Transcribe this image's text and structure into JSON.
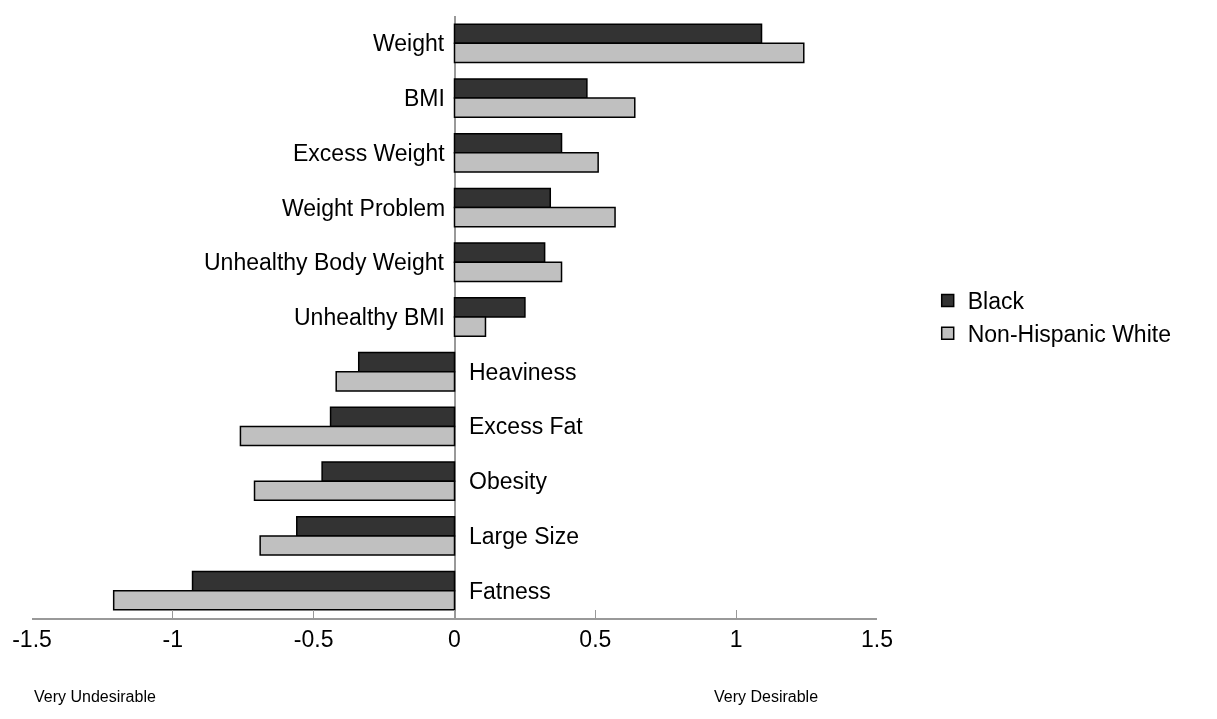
{
  "chart_data": {
    "type": "bar",
    "orientation": "horizontal",
    "categories": [
      "Weight",
      "BMI",
      "Excess Weight",
      "Weight Problem",
      "Unhealthy Body Weight",
      "Unhealthy BMI",
      "Heaviness",
      "Excess Fat",
      "Obesity",
      "Large Size",
      "Fatness"
    ],
    "series": [
      {
        "name": "Black",
        "color": "#333333",
        "values": [
          1.09,
          0.47,
          0.38,
          0.34,
          0.32,
          0.25,
          -0.34,
          -0.44,
          -0.47,
          -0.56,
          -0.93
        ]
      },
      {
        "name": "Non-Hispanic White",
        "color": "#c0c0c0",
        "values": [
          1.24,
          0.64,
          0.51,
          0.57,
          0.38,
          0.11,
          -0.42,
          -0.76,
          -0.71,
          -0.69,
          -1.21
        ]
      }
    ],
    "xlim": [
      -1.5,
      1.5
    ],
    "xticks": [
      -1.5,
      -1,
      -0.5,
      0,
      0.5,
      1,
      1.5
    ],
    "annotations": [
      "Very Undesirable",
      "Very Desirable"
    ],
    "grid": false,
    "legend": "right"
  }
}
